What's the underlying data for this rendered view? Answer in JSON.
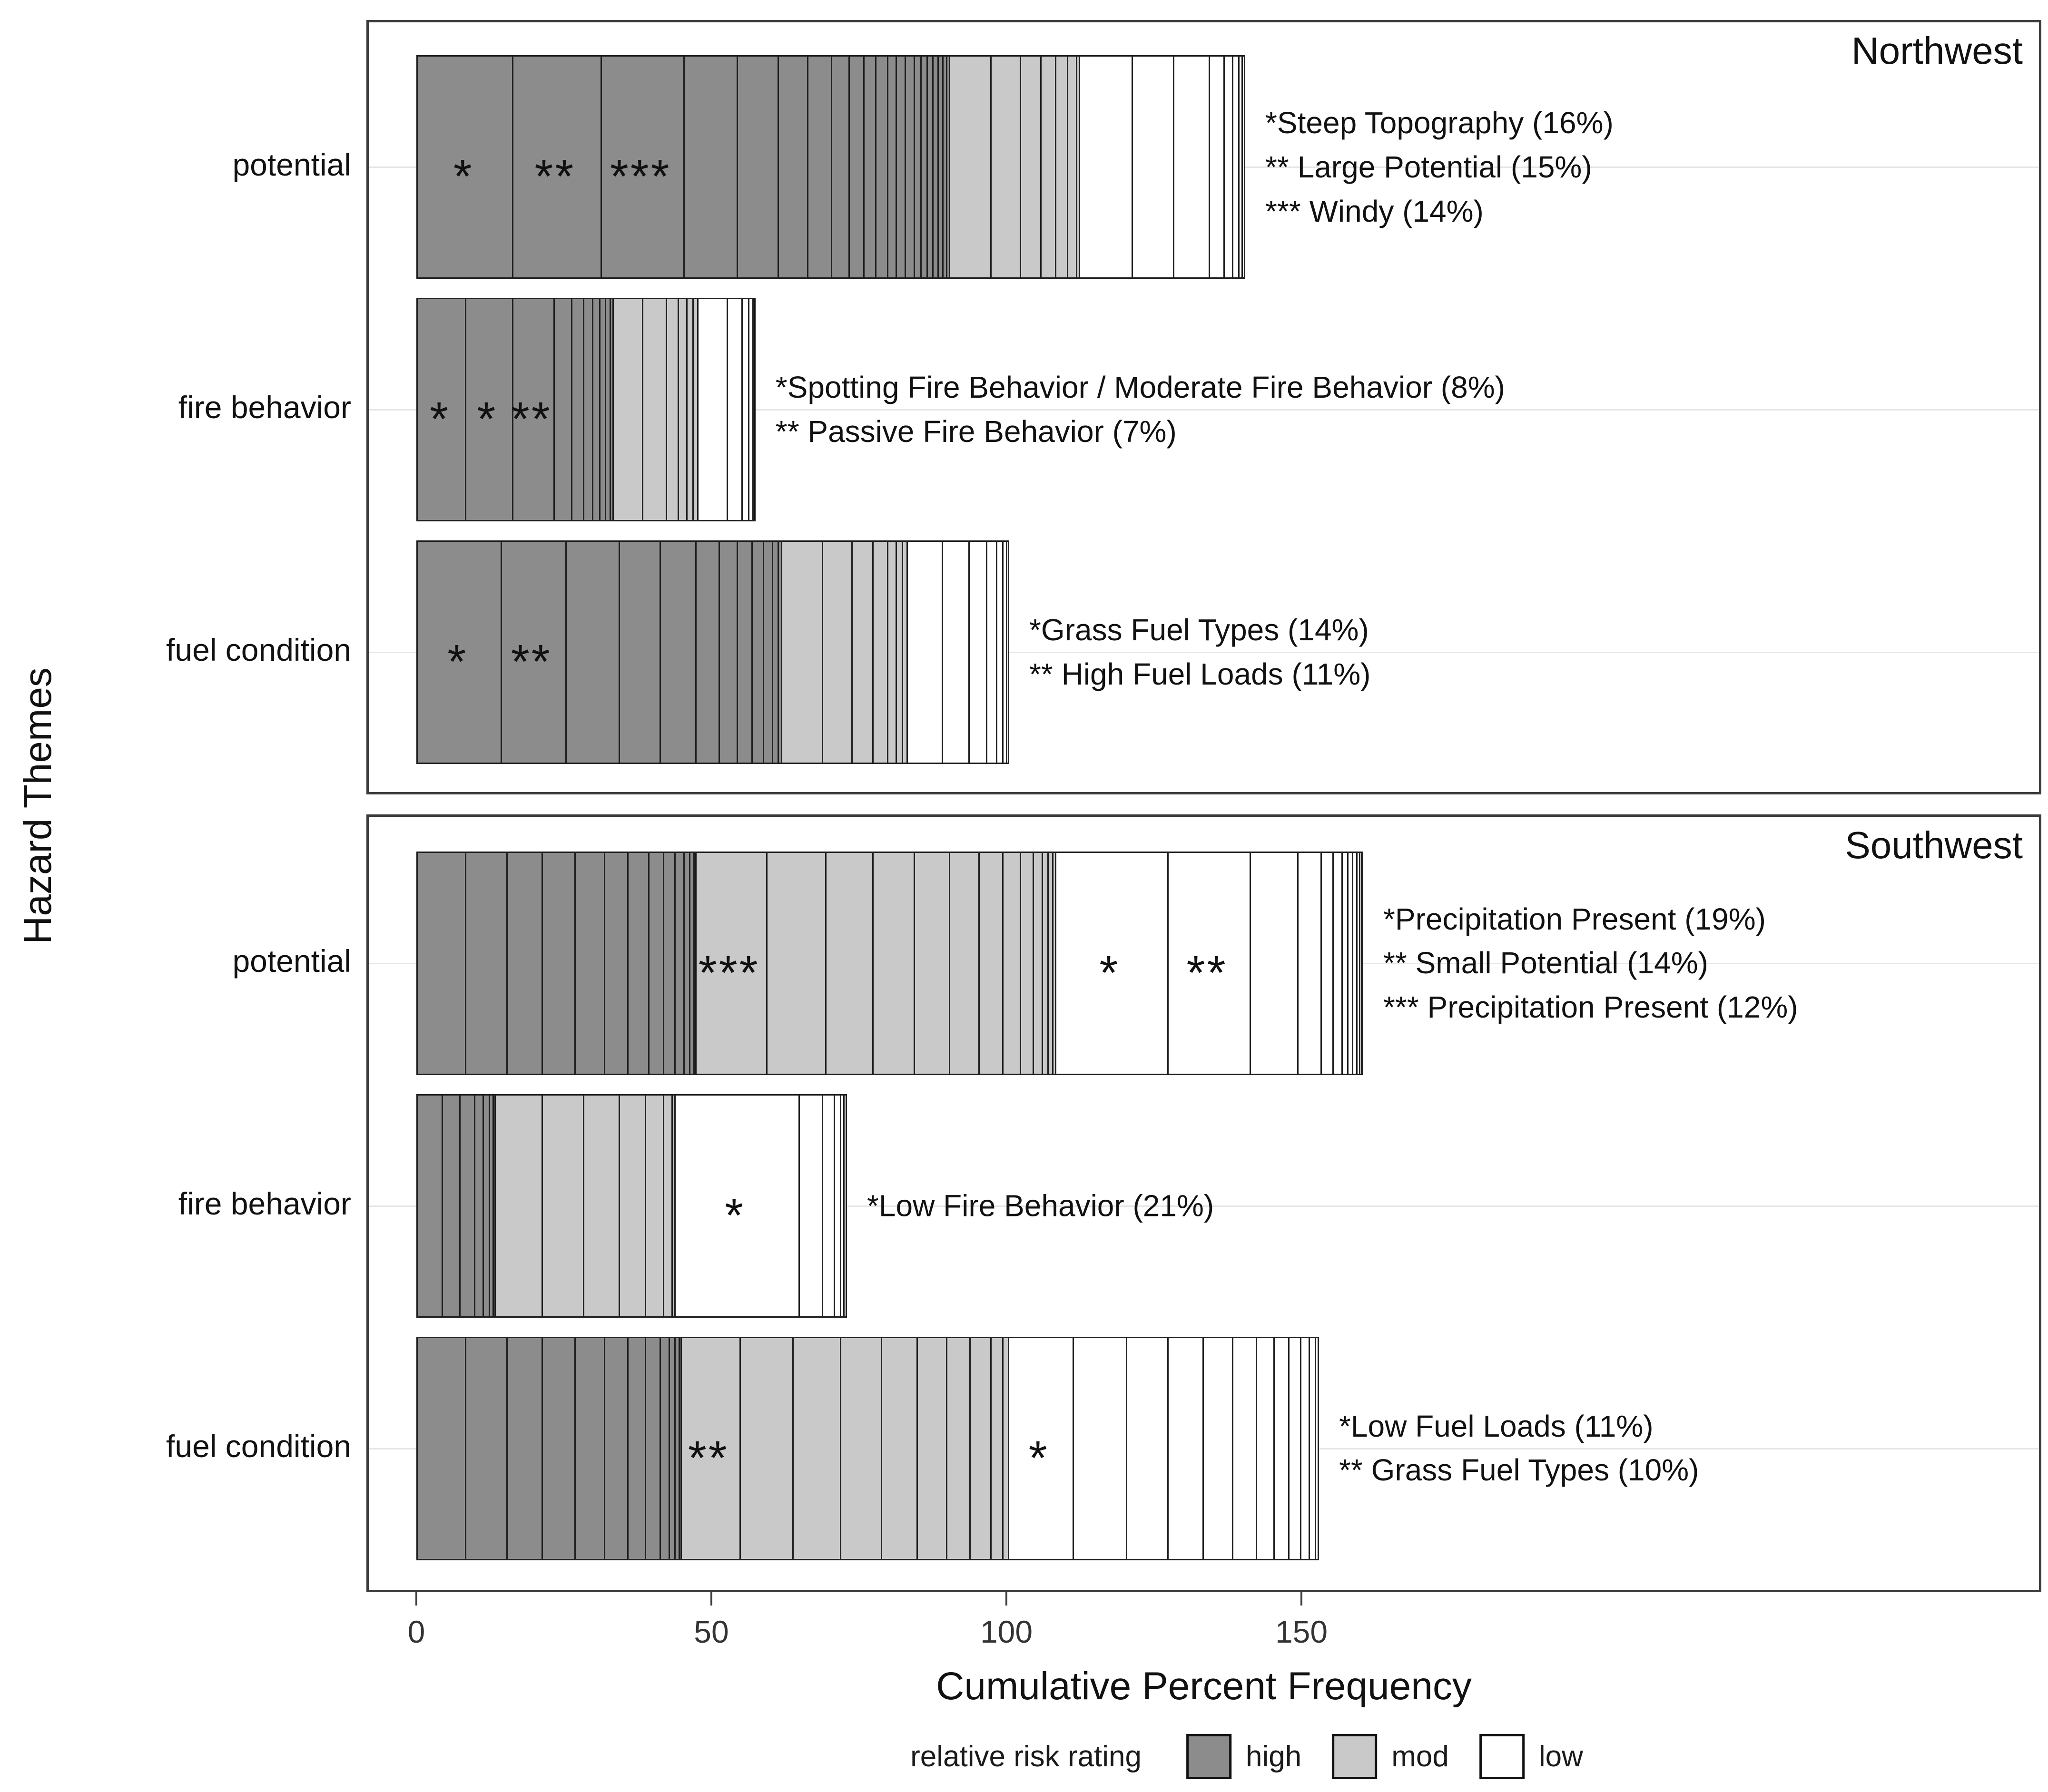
{
  "chart_data": {
    "type": "bar",
    "orientation": "horizontal",
    "stacked": true,
    "xlabel": "Cumulative Percent Frequency",
    "ylabel": "Hazard Themes",
    "x_ticks": [
      0,
      50,
      100,
      150
    ],
    "xlim": [
      0,
      275
    ],
    "grid": "horizontal-faint",
    "rating_order": [
      "high",
      "mod",
      "low"
    ],
    "risk_colors": {
      "high": "#8c8c8c",
      "mod": "#c9c9c9",
      "low": "#ffffff"
    },
    "segment_border_color": "#1f1f1f",
    "legend": {
      "title": "relative risk rating",
      "position": "bottom",
      "items": [
        {
          "label": "high",
          "color": "#8c8c8c"
        },
        {
          "label": "mod",
          "color": "#c9c9c9"
        },
        {
          "label": "low",
          "color": "#ffffff"
        }
      ]
    },
    "panels": [
      {
        "region": "Northwest",
        "bars": [
          {
            "category": "potential",
            "total": 140,
            "segments": {
              "high": [
                16,
                15,
                14,
                9,
                7,
                5,
                4,
                3,
                2.5,
                2,
                2,
                1.5,
                1.5,
                1.5,
                1.2,
                1,
                1,
                0.9,
                0.8,
                0.6,
                0.5
              ],
              "mod": [
                7,
                5,
                3.5,
                2.5,
                2,
                1.5,
                0.5
              ],
              "low": [
                9,
                7,
                6,
                2.5,
                1.5,
                1,
                0.6,
                0.4
              ]
            },
            "marks": [
              {
                "at": 8,
                "symbol": "*"
              },
              {
                "at": 23.5,
                "symbol": "**"
              },
              {
                "at": 38,
                "symbol": "***"
              }
            ],
            "annotation": [
              "*Steep Topography (16%)",
              "** Large Potential (15%)",
              "*** Windy (14%)"
            ]
          },
          {
            "category": "fire behavior",
            "total": 57,
            "segments": {
              "high": [
                8,
                8,
                7,
                3,
                2,
                1.5,
                1.2,
                1,
                0.8,
                0.5
              ],
              "mod": [
                5,
                4,
                2,
                1.5,
                1,
                0.8
              ],
              "low": [
                5,
                2.5,
                1.2,
                0.7,
                0.3
              ]
            },
            "marks": [
              {
                "at": 4,
                "symbol": "*"
              },
              {
                "at": 12,
                "symbol": "*"
              },
              {
                "at": 19.5,
                "symbol": "**"
              }
            ],
            "annotation": [
              "*Spotting Fire Behavior / Moderate Fire Behavior (8%)",
              "** Passive Fire Behavior (7%)"
            ]
          },
          {
            "category": "fuel condition",
            "total": 100,
            "segments": {
              "high": [
                14,
                11,
                9,
                7,
                6,
                4,
                3,
                2.5,
                2,
                1.5,
                1,
                0.5
              ],
              "mod": [
                7,
                5,
                3.5,
                2.5,
                1.5,
                1,
                0.8
              ],
              "low": [
                6,
                4.5,
                3,
                1.7,
                1,
                0.7,
                0.3
              ]
            },
            "marks": [
              {
                "at": 7,
                "symbol": "*"
              },
              {
                "at": 19.5,
                "symbol": "**"
              }
            ],
            "annotation": [
              "*Grass Fuel Types (14%)",
              "** High Fuel Loads (11%)"
            ]
          }
        ]
      },
      {
        "region": "Southwest",
        "bars": [
          {
            "category": "potential",
            "total": 160,
            "segments": {
              "high": [
                8,
                7,
                6,
                5.5,
                5,
                4,
                3.5,
                2.5,
                2,
                1.5,
                1,
                0.7,
                0.3
              ],
              "mod": [
                12,
                10,
                8,
                7,
                6,
                5,
                4,
                3,
                2.2,
                1.5,
                1,
                0.8,
                0.5
              ],
              "low": [
                19,
                14,
                8,
                4,
                2,
                1.5,
                1,
                0.8,
                0.7,
                0.5,
                0.3,
                0.2
              ]
            },
            "marks": [
              {
                "at": 53,
                "symbol": "***"
              },
              {
                "at": 117.5,
                "symbol": "*"
              },
              {
                "at": 134,
                "symbol": "**"
              }
            ],
            "annotation": [
              "*Precipitation Present (19%)",
              "** Small Potential (14%)",
              "*** Precipitation Present (12%)"
            ]
          },
          {
            "category": "fire behavior",
            "total": 72.5,
            "segments": {
              "high": [
                4,
                3,
                2.5,
                1.5,
                1,
                0.7,
                0.3
              ],
              "mod": [
                8,
                7,
                6,
                4.5,
                3,
                1.5,
                0.5
              ],
              "low": [
                21,
                4,
                2,
                1,
                0.6,
                0.4
              ]
            },
            "marks": [
              {
                "at": 54,
                "symbol": "*"
              }
            ],
            "annotation": [
              "*Low Fire Behavior (21%)"
            ]
          },
          {
            "category": "fuel condition",
            "total": 152.5,
            "segments": {
              "high": [
                8,
                7,
                6,
                5.5,
                5,
                4,
                3,
                2.5,
                1.5,
                1,
                0.7,
                0.3
              ],
              "mod": [
                10,
                9,
                8,
                7,
                6,
                5,
                4,
                3.5,
                2,
                1
              ],
              "low": [
                11,
                9,
                7,
                6,
                5,
                4,
                3,
                2.5,
                2,
                1.5,
                1,
                0.5
              ]
            },
            "marks": [
              {
                "at": 49.5,
                "symbol": "**"
              },
              {
                "at": 105.5,
                "symbol": "*"
              }
            ],
            "annotation": [
              "*Low Fuel Loads (11%)",
              "** Grass Fuel Types (10%)"
            ]
          }
        ]
      }
    ]
  }
}
